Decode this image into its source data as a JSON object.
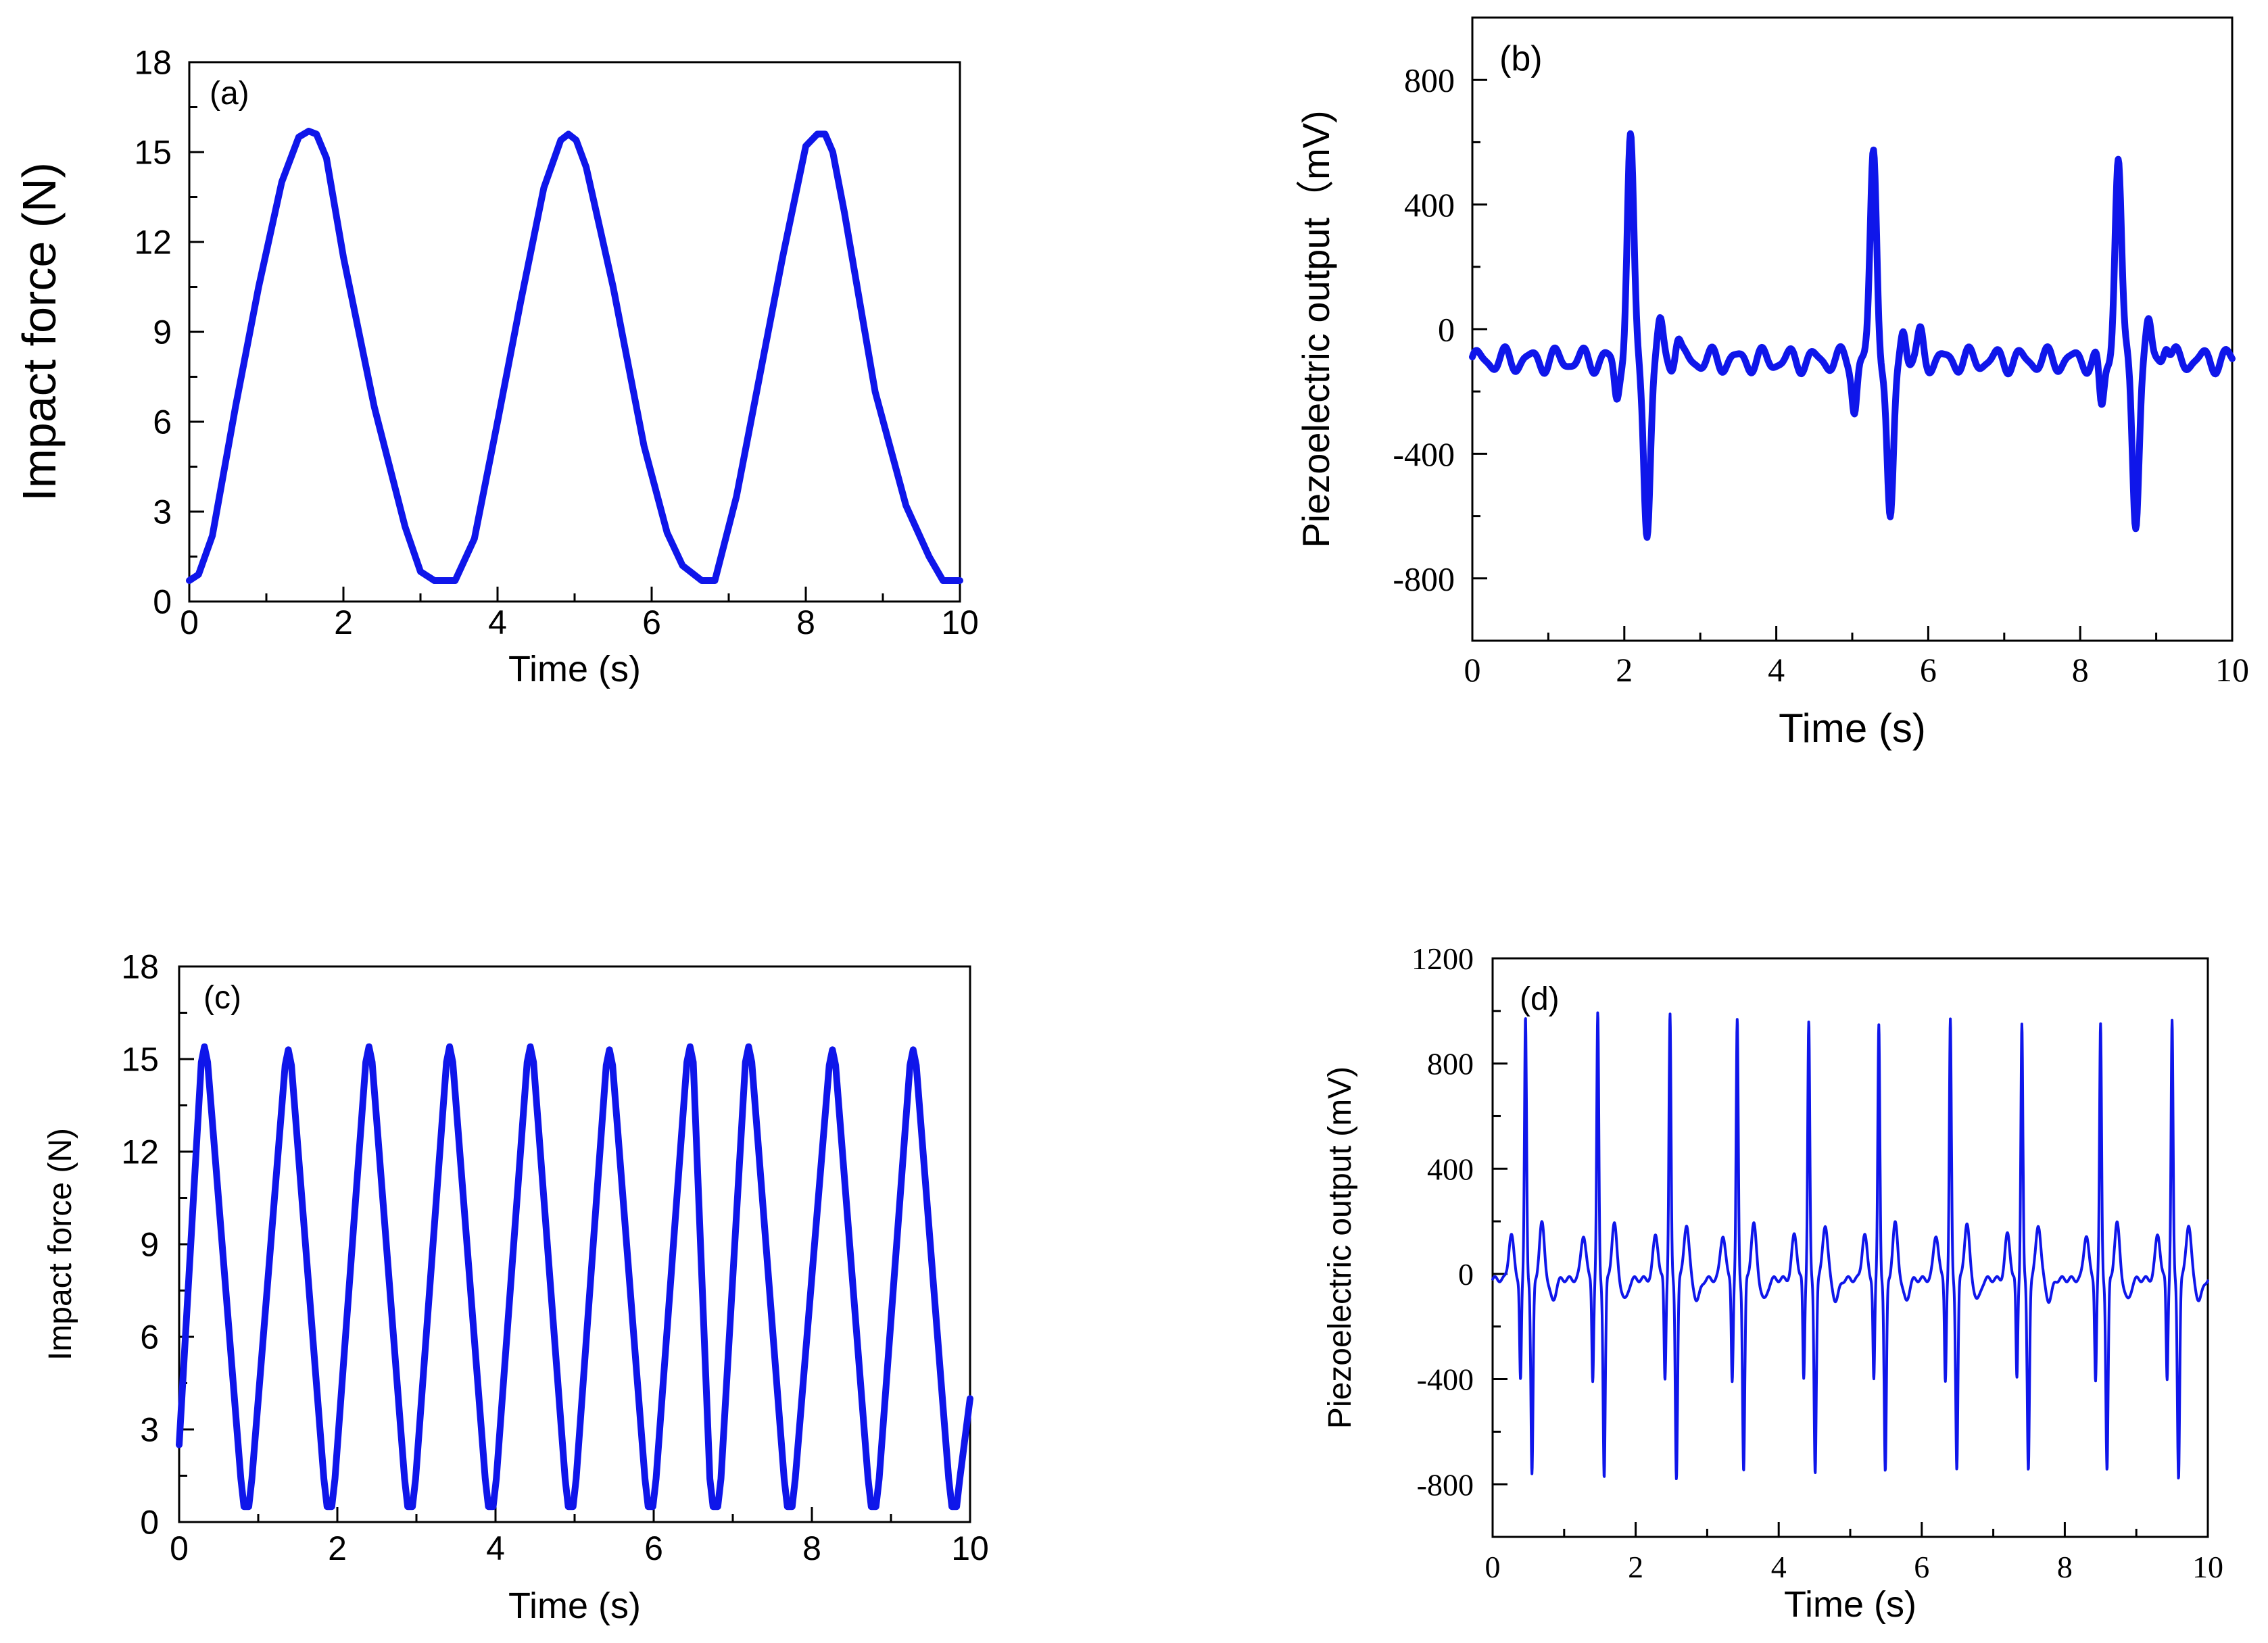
{
  "chart_data": [
    {
      "id": "a",
      "type": "line",
      "panel_label": "(a)",
      "xlabel": "Time (s)",
      "ylabel": "Impact force (N)",
      "xlim": [
        0,
        10
      ],
      "ylim": [
        0,
        18
      ],
      "xticks": [
        "0",
        "2",
        "4",
        "6",
        "8",
        "10"
      ],
      "yticks": [
        "0",
        "3",
        "6",
        "9",
        "12",
        "15",
        "18"
      ],
      "series": [
        {
          "name": "impact force",
          "x": [
            0,
            0.12,
            0.3,
            0.6,
            0.9,
            1.2,
            1.42,
            1.55,
            1.65,
            1.78,
            2.0,
            2.4,
            2.8,
            3.0,
            3.18,
            3.45,
            3.7,
            4.0,
            4.3,
            4.6,
            4.82,
            4.92,
            5.02,
            5.15,
            5.5,
            5.9,
            6.2,
            6.4,
            6.65,
            6.82,
            7.1,
            7.4,
            7.7,
            8.0,
            8.15,
            8.25,
            8.35,
            8.5,
            8.9,
            9.3,
            9.6,
            9.78,
            10.0
          ],
          "y": [
            0.7,
            0.9,
            2.2,
            6.5,
            10.5,
            14.0,
            15.5,
            15.7,
            15.6,
            14.8,
            11.5,
            6.5,
            2.5,
            1.0,
            0.7,
            0.7,
            2.1,
            6.0,
            10.0,
            13.8,
            15.4,
            15.6,
            15.4,
            14.5,
            10.5,
            5.2,
            2.3,
            1.2,
            0.7,
            0.7,
            3.5,
            7.5,
            11.5,
            15.2,
            15.6,
            15.6,
            15.0,
            13.0,
            7.0,
            3.2,
            1.5,
            0.7,
            0.7
          ]
        }
      ]
    },
    {
      "id": "b",
      "type": "line",
      "panel_label": "(b)",
      "xlabel": "Time (s)",
      "ylabel": "Piezoelectric output（mV)",
      "xlim": [
        0,
        10
      ],
      "ylim": [
        -1000,
        1000
      ],
      "xticks": [
        "0",
        "2",
        "4",
        "6",
        "8",
        "10"
      ],
      "yticks": [
        "-800",
        "-400",
        "0",
        "400",
        "800"
      ],
      "baseline": -100,
      "pulses": [
        {
          "pre_dip_t": 1.9,
          "pre_dip": -220,
          "peak_t": 2.08,
          "peak": 600,
          "trough_t": 2.3,
          "trough": -645
        },
        {
          "pre_dip_t": 5.03,
          "pre_dip": -250,
          "peak_t": 5.28,
          "peak": 570,
          "trough_t": 5.5,
          "trough": -640
        },
        {
          "pre_dip_t": 8.28,
          "pre_dip": -260,
          "peak_t": 8.5,
          "peak": 555,
          "trough_t": 8.73,
          "trough": -600
        }
      ]
    },
    {
      "id": "c",
      "type": "line",
      "panel_label": "(c)",
      "xlabel": "Time (s)",
      "ylabel": "Impact force (N)",
      "xlim": [
        0,
        10
      ],
      "ylim": [
        0,
        18
      ],
      "xticks": [
        "0",
        "2",
        "4",
        "6",
        "8",
        "10"
      ],
      "yticks": [
        "0",
        "3",
        "6",
        "9",
        "12",
        "15",
        "18"
      ],
      "peak_times": [
        0.32,
        1.38,
        2.4,
        3.42,
        4.44,
        5.44,
        6.46,
        7.2,
        8.26,
        9.28
      ],
      "trough_times": [
        0.85,
        1.9,
        2.92,
        3.94,
        4.95,
        5.96,
        6.78,
        7.72,
        8.78,
        9.8
      ],
      "peak_values": [
        15.4,
        15.3,
        15.4,
        15.4,
        15.4,
        15.3,
        15.4,
        15.4,
        15.3,
        15.3
      ],
      "trough_value": 0.5,
      "start_value": 2.5,
      "end_value": 4.0
    },
    {
      "id": "d",
      "type": "line",
      "panel_label": "(d)",
      "xlabel": "Time (s)",
      "ylabel": "Piezoelectric output (mV)",
      "xlim": [
        0,
        10
      ],
      "ylim": [
        -1000,
        1200
      ],
      "xticks": [
        "0",
        "2",
        "4",
        "6",
        "8",
        "10"
      ],
      "yticks": [
        "-800",
        "-400",
        "0",
        "400",
        "800",
        "1200"
      ],
      "baseline": -20,
      "pulse_times": [
        0.46,
        1.47,
        2.48,
        3.42,
        4.42,
        5.4,
        6.4,
        7.4,
        8.5,
        9.5
      ],
      "peaks": [
        980,
        985,
        985,
        960,
        960,
        950,
        960,
        955,
        945,
        960
      ],
      "troughs": [
        -770,
        -775,
        -770,
        -750,
        -750,
        -760,
        -740,
        -740,
        -750,
        -770
      ]
    }
  ]
}
